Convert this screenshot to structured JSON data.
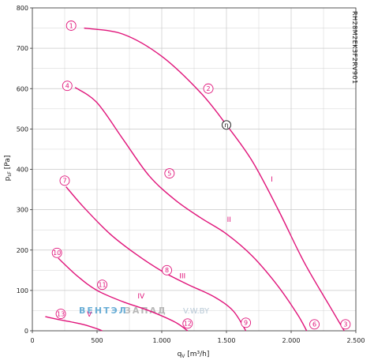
{
  "chart_data": {
    "type": "line",
    "title": "",
    "model_code": "RH28M2EK3F2RV901",
    "xlabel": "q",
    "xlabel_sub": "V",
    "xlabel_unit": " [m³/h]",
    "ylabel": "p",
    "ylabel_sub": "sF",
    "ylabel_unit": " [Pa]",
    "xlim": [
      0,
      2500
    ],
    "ylim": [
      0,
      800
    ],
    "x_ticks": [
      0,
      500,
      1000,
      1500,
      2000,
      2500
    ],
    "x_tick_labels": [
      "0",
      "500",
      "1.000",
      "1.500",
      "2.000",
      "2.500"
    ],
    "y_ticks": [
      0,
      100,
      200,
      300,
      400,
      500,
      600,
      700,
      800
    ],
    "y_tick_labels": [
      "0",
      "100",
      "200",
      "300",
      "400",
      "500",
      "600",
      "700",
      "800"
    ],
    "grid": true,
    "colors": {
      "curve": "#e0147a",
      "grid": "#c8c8c8",
      "axis": "#333333"
    },
    "series": [
      {
        "name": "I",
        "label_at": [
          1850,
          370
        ],
        "points": [
          [
            400,
            750
          ],
          [
            700,
            735
          ],
          [
            1000,
            680
          ],
          [
            1300,
            590
          ],
          [
            1500,
            510
          ],
          [
            1700,
            420
          ],
          [
            1900,
            300
          ],
          [
            2100,
            170
          ],
          [
            2300,
            60
          ],
          [
            2410,
            0
          ]
        ]
      },
      {
        "name": "II",
        "label_at": [
          1520,
          270
        ],
        "points": [
          [
            330,
            603
          ],
          [
            500,
            565
          ],
          [
            700,
            475
          ],
          [
            900,
            385
          ],
          [
            1100,
            325
          ],
          [
            1300,
            280
          ],
          [
            1500,
            240
          ],
          [
            1700,
            185
          ],
          [
            1900,
            110
          ],
          [
            2050,
            40
          ],
          [
            2120,
            0
          ]
        ]
      },
      {
        "name": "III",
        "label_at": [
          1160,
          130
        ],
        "points": [
          [
            260,
            357
          ],
          [
            400,
            305
          ],
          [
            600,
            240
          ],
          [
            800,
            190
          ],
          [
            1000,
            148
          ],
          [
            1200,
            115
          ],
          [
            1400,
            85
          ],
          [
            1550,
            50
          ],
          [
            1650,
            0
          ]
        ]
      },
      {
        "name": "IV",
        "label_at": [
          840,
          80
        ],
        "points": [
          [
            200,
            180
          ],
          [
            350,
            135
          ],
          [
            500,
            100
          ],
          [
            700,
            72
          ],
          [
            900,
            50
          ],
          [
            1100,
            22
          ],
          [
            1200,
            0
          ]
        ]
      },
      {
        "name": "V",
        "label_at": [
          440,
          35
        ],
        "points": [
          [
            100,
            35
          ],
          [
            200,
            28
          ],
          [
            300,
            22
          ],
          [
            400,
            15
          ],
          [
            500,
            5
          ],
          [
            540,
            0
          ]
        ]
      }
    ],
    "markers": [
      {
        "label": "1",
        "x": 300,
        "y": 756
      },
      {
        "label": "2",
        "x": 1360,
        "y": 600
      },
      {
        "label": "3",
        "x": 2420,
        "y": 16
      },
      {
        "label": "4",
        "x": 270,
        "y": 607
      },
      {
        "label": "5",
        "x": 1060,
        "y": 390
      },
      {
        "label": "6",
        "x": 2180,
        "y": 16
      },
      {
        "label": "7",
        "x": 250,
        "y": 372
      },
      {
        "label": "8",
        "x": 1040,
        "y": 150
      },
      {
        "label": "9",
        "x": 1650,
        "y": 20
      },
      {
        "label": "10",
        "x": 190,
        "y": 193
      },
      {
        "label": "11",
        "x": 540,
        "y": 114
      },
      {
        "label": "12",
        "x": 1200,
        "y": 18
      },
      {
        "label": "13",
        "x": 220,
        "y": 42
      }
    ],
    "optimum_marker": {
      "label": "η",
      "x": 1500,
      "y": 510
    },
    "watermark": {
      "part1": "ВЕНТЭЛ",
      "part2": "ЗАПАД",
      "part3": "V.W.BY"
    }
  }
}
